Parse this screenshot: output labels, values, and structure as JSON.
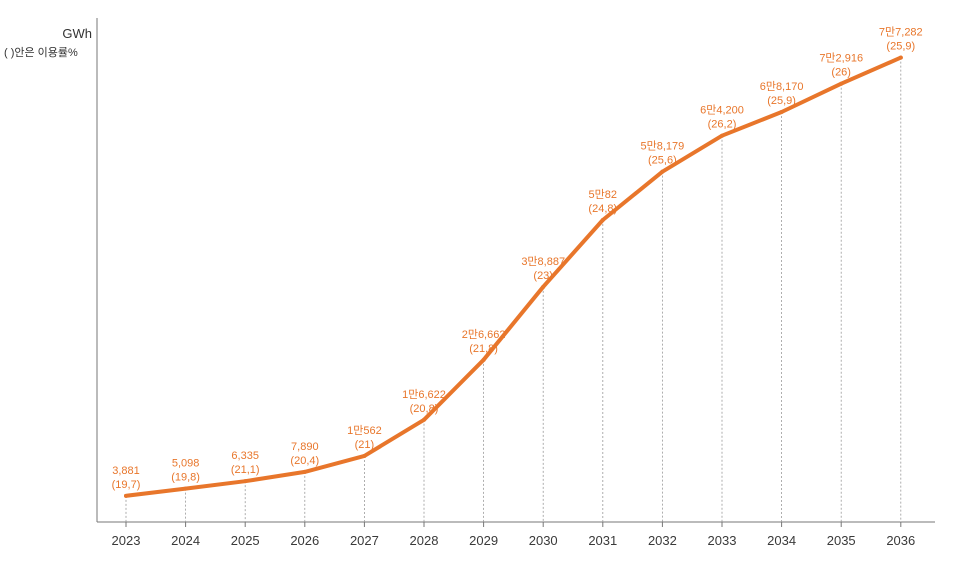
{
  "chart_data": {
    "type": "line",
    "title": "",
    "unit": "GWh",
    "note": "( )안은 이용률%",
    "xlabel": "",
    "ylabel": "GWh",
    "ylim": [
      0,
      80000
    ],
    "categories": [
      "2023",
      "2024",
      "2025",
      "2026",
      "2027",
      "2028",
      "2029",
      "2030",
      "2031",
      "2032",
      "2033",
      "2034",
      "2035",
      "2036"
    ],
    "series": [
      {
        "name": "GWh",
        "color": "#e8762b",
        "values": [
          3881,
          5098,
          6335,
          7890,
          10562,
          16622,
          26662,
          38887,
          50082,
          58179,
          64200,
          68170,
          72916,
          77282
        ],
        "value_labels": [
          "3,881",
          "5,098",
          "6,335",
          "7,890",
          "1만562",
          "1만6,622",
          "2만6,662",
          "3만8,887",
          "5만82",
          "5만8,179",
          "6만4,200",
          "6만8,170",
          "7만2,916",
          "7만7,282"
        ],
        "rate_labels": [
          "(19,7)",
          "(19,8)",
          "(21,1)",
          "(20,4)",
          "(21)",
          "(20,8)",
          "(21,8)",
          "(23)",
          "(24,8)",
          "(25,6)",
          "(26,2)",
          "(25,9)",
          "(26)",
          "(25,9)"
        ]
      }
    ]
  }
}
